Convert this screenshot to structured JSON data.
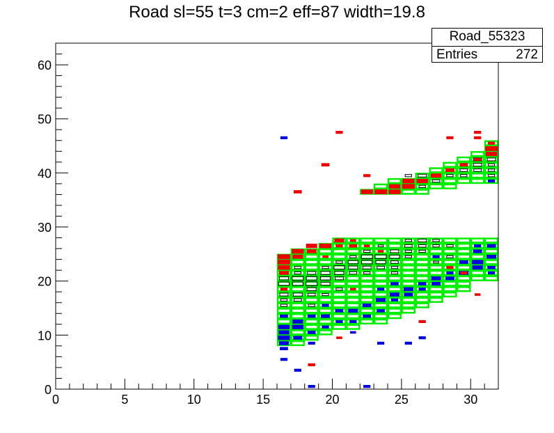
{
  "title": "Road sl=55 t=3 cm=2 eff=87 width=19.8",
  "stats": {
    "name": "Road_55323",
    "entries_label": "Entries",
    "entries_value": "272"
  },
  "colors": {
    "road": "#00ee00",
    "hit_red": "#ee0000",
    "hit_blue": "#0000dd",
    "box_black": "#000000"
  },
  "chart_data": {
    "type": "heatmap",
    "title": "Road sl=55 t=3 cm=2 eff=87 width=19.8",
    "xlabel": "",
    "ylabel": "",
    "xlim": [
      0,
      32
    ],
    "ylim": [
      0,
      64
    ],
    "grid": false,
    "xticks": [
      0,
      5,
      10,
      15,
      20,
      25,
      30
    ],
    "yticks": [
      0,
      10,
      20,
      30,
      40,
      50,
      60
    ],
    "road_cells": [
      [
        16,
        8,
        25
      ],
      [
        17,
        8,
        26
      ],
      [
        18,
        9,
        26
      ],
      [
        19,
        10,
        27
      ],
      [
        20,
        11,
        28
      ],
      [
        21,
        11,
        28
      ],
      [
        22,
        12,
        28
      ],
      [
        23,
        12,
        28
      ],
      [
        24,
        13,
        28
      ],
      [
        25,
        14,
        28
      ],
      [
        26,
        15,
        28
      ],
      [
        27,
        16,
        28
      ],
      [
        28,
        17,
        28
      ],
      [
        29,
        18,
        28
      ],
      [
        30,
        20,
        28
      ],
      [
        31,
        20,
        28
      ],
      [
        22,
        36,
        37
      ],
      [
        23,
        36,
        38
      ],
      [
        24,
        36,
        39
      ],
      [
        25,
        36,
        39
      ],
      [
        26,
        36,
        40
      ],
      [
        27,
        37,
        41
      ],
      [
        28,
        37,
        42
      ],
      [
        29,
        38,
        43
      ],
      [
        30,
        38,
        44
      ],
      [
        31,
        38,
        46
      ]
    ],
    "red_hits": [
      [
        16,
        24,
        1.0
      ],
      [
        16,
        23,
        1.0
      ],
      [
        16,
        22,
        0.9
      ],
      [
        16,
        21,
        0.6
      ],
      [
        17,
        25,
        0.9
      ],
      [
        17,
        24,
        0.7
      ],
      [
        18,
        26,
        0.8
      ],
      [
        18,
        25,
        0.6
      ],
      [
        19,
        26,
        0.9
      ],
      [
        20,
        27,
        0.6
      ],
      [
        20,
        26,
        0.3
      ],
      [
        21,
        26,
        0.4
      ],
      [
        21,
        27,
        0.2
      ],
      [
        22,
        36,
        0.9
      ],
      [
        23,
        36,
        1.0
      ],
      [
        24,
        36,
        0.9
      ],
      [
        24,
        37,
        0.8
      ],
      [
        25,
        37,
        1.0
      ],
      [
        25,
        38,
        0.9
      ],
      [
        26,
        38,
        0.8
      ],
      [
        27,
        39,
        0.7
      ],
      [
        28,
        40,
        0.5
      ],
      [
        29,
        41,
        0.4
      ],
      [
        30,
        42,
        0.3
      ],
      [
        31,
        44,
        1.0
      ],
      [
        31,
        43,
        0.8
      ],
      [
        31,
        45,
        0.3
      ],
      [
        16,
        18,
        0.3
      ],
      [
        17,
        36,
        0.4
      ],
      [
        19,
        41,
        0.4
      ],
      [
        20,
        47,
        0.3
      ],
      [
        28,
        46,
        0.3
      ],
      [
        30,
        47,
        0.3
      ],
      [
        30,
        46,
        0.3
      ],
      [
        28,
        22,
        0.3
      ],
      [
        18,
        4,
        0.3
      ],
      [
        26,
        12,
        0.3
      ],
      [
        29,
        21,
        0.3
      ],
      [
        19,
        24,
        0.2
      ],
      [
        22,
        26,
        0.2
      ],
      [
        23,
        25,
        0.2
      ],
      [
        21,
        18,
        0.2
      ],
      [
        30,
        17,
        0.2
      ],
      [
        20,
        9,
        0.2
      ],
      [
        22,
        39,
        0.3
      ]
    ],
    "blue_hits": [
      [
        16,
        11,
        0.8
      ],
      [
        16,
        10,
        0.7
      ],
      [
        16,
        9,
        0.9
      ],
      [
        16,
        8,
        0.6
      ],
      [
        16,
        7,
        0.4
      ],
      [
        16,
        13,
        0.4
      ],
      [
        16,
        5,
        0.3
      ],
      [
        17,
        12,
        0.7
      ],
      [
        17,
        11,
        0.8
      ],
      [
        17,
        9,
        0.5
      ],
      [
        17,
        3,
        0.3
      ],
      [
        18,
        10,
        0.4
      ],
      [
        18,
        8,
        0.3
      ],
      [
        18,
        13,
        0.4
      ],
      [
        18,
        0,
        0.3
      ],
      [
        19,
        13,
        0.5
      ],
      [
        19,
        11,
        0.3
      ],
      [
        19,
        15,
        0.3
      ],
      [
        20,
        12,
        0.3
      ],
      [
        20,
        14,
        0.4
      ],
      [
        21,
        14,
        0.6
      ],
      [
        21,
        10,
        0.2
      ],
      [
        21,
        12,
        0.3
      ],
      [
        22,
        13,
        0.4
      ],
      [
        22,
        15,
        0.5
      ],
      [
        22,
        0,
        0.3
      ],
      [
        23,
        14,
        0.4
      ],
      [
        23,
        16,
        0.6
      ],
      [
        23,
        8,
        0.3
      ],
      [
        23,
        18,
        0.3
      ],
      [
        24,
        16,
        0.3
      ],
      [
        24,
        17,
        0.6
      ],
      [
        24,
        19,
        0.4
      ],
      [
        25,
        18,
        0.6
      ],
      [
        25,
        17,
        0.5
      ],
      [
        25,
        8,
        0.3
      ],
      [
        26,
        19,
        0.4
      ],
      [
        26,
        18,
        0.3
      ],
      [
        26,
        9,
        0.3
      ],
      [
        27,
        20,
        0.6
      ],
      [
        27,
        19,
        0.5
      ],
      [
        28,
        20,
        0.5
      ],
      [
        28,
        21,
        0.3
      ],
      [
        29,
        21,
        0.6
      ],
      [
        29,
        23,
        0.5
      ],
      [
        30,
        23,
        0.8
      ],
      [
        30,
        22,
        0.7
      ],
      [
        30,
        25,
        0.5
      ],
      [
        30,
        26,
        0.3
      ],
      [
        31,
        24,
        0.6
      ],
      [
        31,
        26,
        0.5
      ],
      [
        31,
        22,
        0.4
      ],
      [
        31,
        21,
        0.3
      ],
      [
        16,
        46,
        0.3
      ],
      [
        31,
        38,
        0.3
      ],
      [
        27,
        24,
        0.3
      ]
    ],
    "black_boxes": [
      [
        16,
        20,
        0.6
      ],
      [
        16,
        19,
        0.8
      ],
      [
        16,
        17,
        0.5
      ],
      [
        16,
        16,
        0.3
      ],
      [
        16,
        15,
        0.3
      ],
      [
        17,
        20,
        0.9
      ],
      [
        17,
        19,
        0.8
      ],
      [
        17,
        17,
        0.6
      ],
      [
        17,
        16,
        0.4
      ],
      [
        17,
        22,
        0.3
      ],
      [
        17,
        21,
        0.3
      ],
      [
        18,
        20,
        0.8
      ],
      [
        18,
        19,
        0.9
      ],
      [
        18,
        18,
        0.6
      ],
      [
        18,
        21,
        0.5
      ],
      [
        18,
        17,
        0.4
      ],
      [
        18,
        15,
        0.3
      ],
      [
        19,
        21,
        0.6
      ],
      [
        19,
        20,
        0.7
      ],
      [
        19,
        19,
        0.6
      ],
      [
        19,
        22,
        0.3
      ],
      [
        19,
        17,
        0.3
      ],
      [
        20,
        22,
        0.8
      ],
      [
        20,
        21,
        0.6
      ],
      [
        20,
        20,
        0.5
      ],
      [
        20,
        23,
        0.3
      ],
      [
        20,
        18,
        0.3
      ],
      [
        21,
        23,
        0.7
      ],
      [
        21,
        22,
        0.6
      ],
      [
        21,
        21,
        0.4
      ],
      [
        21,
        24,
        0.3
      ],
      [
        22,
        24,
        0.9
      ],
      [
        22,
        23,
        0.8
      ],
      [
        22,
        22,
        0.5
      ],
      [
        22,
        25,
        0.3
      ],
      [
        22,
        21,
        0.3
      ],
      [
        23,
        24,
        0.9
      ],
      [
        23,
        23,
        0.7
      ],
      [
        23,
        22,
        0.4
      ],
      [
        23,
        26,
        0.2
      ],
      [
        24,
        25,
        0.5
      ],
      [
        24,
        24,
        0.7
      ],
      [
        24,
        23,
        0.4
      ],
      [
        24,
        22,
        0.3
      ],
      [
        24,
        21,
        0.3
      ],
      [
        25,
        27,
        0.3
      ],
      [
        25,
        26,
        0.4
      ],
      [
        25,
        25,
        0.3
      ],
      [
        25,
        24,
        0.3
      ],
      [
        26,
        27,
        0.5
      ],
      [
        26,
        26,
        0.4
      ],
      [
        26,
        25,
        0.3
      ],
      [
        27,
        27,
        0.3
      ],
      [
        27,
        26,
        0.3
      ],
      [
        27,
        23,
        0.2
      ],
      [
        28,
        26,
        0.3
      ],
      [
        28,
        24,
        0.3
      ],
      [
        24,
        37,
        0.4
      ],
      [
        26,
        37,
        0.3
      ],
      [
        26,
        39,
        0.5
      ],
      [
        27,
        38,
        0.4
      ],
      [
        28,
        40,
        0.3
      ],
      [
        28,
        39,
        0.3
      ],
      [
        29,
        41,
        0.4
      ],
      [
        29,
        40,
        0.4
      ],
      [
        29,
        39,
        0.3
      ],
      [
        30,
        42,
        0.5
      ],
      [
        30,
        41,
        0.5
      ],
      [
        30,
        40,
        0.4
      ],
      [
        31,
        42,
        0.5
      ],
      [
        31,
        41,
        0.3
      ],
      [
        31,
        40,
        0.3
      ],
      [
        31,
        39,
        0.3
      ],
      [
        25,
        39,
        0.3
      ]
    ]
  }
}
